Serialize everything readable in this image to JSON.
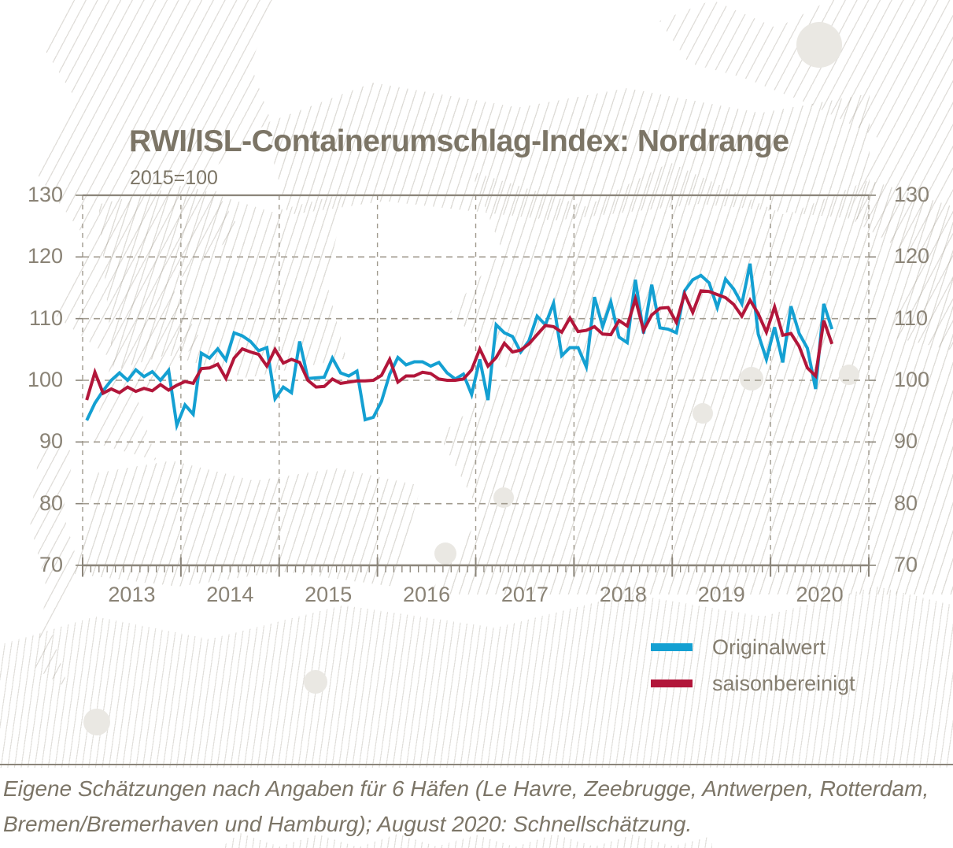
{
  "title": "RWI/ISL-Containerumschlag-Index: Nordrange",
  "subtitle": "2015=100",
  "legend": [
    {
      "label": "Originalwert",
      "color": "#14a0d2"
    },
    {
      "label": "saisonbereinigt",
      "color": "#b2163a"
    }
  ],
  "footnote_line1": "Eigene Schätzungen nach Angaben für 6 Häfen (Le Havre, Zeebrugge, Antwerpen, Rotterdam,",
  "footnote_line2": "Bremen/Bremerhaven und Hamburg); August 2020: Schnellschätzung.",
  "colors": {
    "blue_line": "#14a0d2",
    "red_line": "#b2163a",
    "axis": "#8b857a",
    "grid_dashed": "#a09a8e",
    "text": "#8a8376"
  },
  "chart_data": {
    "type": "line",
    "title": "RWI/ISL-Containerumschlag-Index: Nordrange",
    "subtitle": "2015=100",
    "x_monthly_from": "2013-01",
    "x_monthly_to": "2020-08",
    "x_axis_span_months": 96,
    "x_tick_years": [
      "2013",
      "2014",
      "2015",
      "2016",
      "2017",
      "2018",
      "2019",
      "2020"
    ],
    "y_ticks": [
      130,
      120,
      110,
      100,
      90,
      80,
      70
    ],
    "ylim": [
      70,
      130
    ],
    "grid": "horizontal dashed at 80-120, solid at 70/130; vertical dashed at year starts; monthly minor ticks",
    "legend_position": "below right",
    "series": [
      {
        "name": "Originalwert",
        "color": "#14a0d2",
        "values": [
          93.5,
          96.3,
          98.3,
          100,
          101.2,
          100,
          101.7,
          100.6,
          101.4,
          100,
          101.6,
          92.7,
          96,
          94.5,
          104.4,
          103.6,
          105.1,
          103.3,
          107.7,
          107.2,
          106.3,
          104.8,
          105.3,
          97,
          98.9,
          98,
          106.3,
          100.3,
          100.4,
          100.5,
          103.6,
          101.2,
          100.7,
          101.5,
          93.6,
          94,
          96.6,
          101,
          103.7,
          102.5,
          103,
          103,
          102.3,
          102.9,
          101.2,
          100.2,
          101,
          97.7,
          103.4,
          96.8,
          109,
          107.7,
          107.1,
          104.6,
          106.4,
          110.4,
          109,
          112.5,
          104,
          105.3,
          105.3,
          102.2,
          113.5,
          108.7,
          112.7,
          107,
          106.1,
          116.3,
          107.6,
          115.5,
          108.5,
          108.3,
          107.7,
          114.5,
          116.3,
          117,
          115.8,
          111.8,
          116.4,
          114.8,
          112.4,
          118.9,
          107.5,
          103.4,
          108.6,
          102.9,
          112,
          107.6,
          105.2,
          98.6,
          112.4,
          108.3
        ]
      },
      {
        "name": "saisonbereinigt",
        "color": "#b2163a",
        "values": [
          96.8,
          101.3,
          97.9,
          98.6,
          98,
          98.9,
          98.2,
          98.7,
          98.3,
          99.3,
          98.4,
          99.2,
          99.8,
          99.5,
          101.9,
          102,
          102.6,
          100.3,
          103.6,
          105.1,
          104.6,
          104.2,
          102.3,
          105,
          102.8,
          103.4,
          102.9,
          100,
          98.9,
          99,
          100.2,
          99.5,
          99.7,
          99.9,
          99.9,
          100,
          100.8,
          103.4,
          99.7,
          100.7,
          100.7,
          101.3,
          101.1,
          100.2,
          100,
          100,
          100.2,
          101.7,
          105.1,
          102.3,
          103.7,
          106,
          104.6,
          104.9,
          105.9,
          107.4,
          108.9,
          108.7,
          107.8,
          110.1,
          107.9,
          108.1,
          108.7,
          107.5,
          107.4,
          109.7,
          108.8,
          113.2,
          108.1,
          110.6,
          111.7,
          111.8,
          109.4,
          114,
          111,
          114.5,
          114.4,
          113.9,
          113.4,
          112.3,
          110.4,
          113,
          110.8,
          107.8,
          111.9,
          107.3,
          107.6,
          105.5,
          102,
          100.7,
          109.7,
          105.9
        ]
      }
    ]
  }
}
